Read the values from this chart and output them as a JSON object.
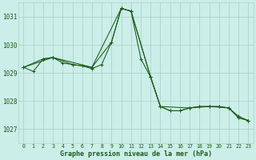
{
  "title": "Graphe pression niveau de la mer (hPa)",
  "bg_color": "#cceee8",
  "grid_color": "#aad4cc",
  "line_color": "#1a5c1a",
  "marker_color": "#1a5c1a",
  "xlim": [
    -0.5,
    23.5
  ],
  "ylim": [
    1026.5,
    1031.5
  ],
  "yticks": [
    1027,
    1028,
    1029,
    1030,
    1031
  ],
  "xticks": [
    0,
    1,
    2,
    3,
    4,
    5,
    6,
    7,
    8,
    9,
    10,
    11,
    12,
    13,
    14,
    15,
    16,
    17,
    18,
    19,
    20,
    21,
    22,
    23
  ],
  "series": [
    {
      "x": [
        0,
        1,
        2,
        3,
        4,
        5,
        6,
        7,
        8,
        9,
        10,
        11,
        12,
        13,
        14,
        15,
        16,
        17,
        18,
        19,
        20,
        21,
        22,
        23
      ],
      "y": [
        1029.2,
        1029.05,
        1029.5,
        1029.55,
        1029.35,
        1029.3,
        1029.25,
        1029.15,
        1029.3,
        1030.1,
        1031.3,
        1031.2,
        1029.5,
        1028.85,
        1027.8,
        1027.65,
        1027.65,
        1027.75,
        1027.8,
        1027.8,
        1027.8,
        1027.75,
        1027.4,
        1027.3
      ]
    },
    {
      "x": [
        0,
        2,
        3,
        5,
        7,
        9,
        10,
        11,
        13,
        14,
        15,
        16,
        17,
        18,
        19,
        20,
        21,
        22,
        23
      ],
      "y": [
        1029.2,
        1029.5,
        1029.55,
        1029.3,
        1029.2,
        1030.1,
        1031.3,
        1031.2,
        1028.85,
        1027.8,
        1027.65,
        1027.65,
        1027.75,
        1027.8,
        1027.8,
        1027.8,
        1027.75,
        1027.45,
        1027.3
      ]
    },
    {
      "x": [
        0,
        3,
        7,
        10,
        11,
        13,
        14,
        17,
        19,
        21,
        22,
        23
      ],
      "y": [
        1029.2,
        1029.55,
        1029.2,
        1031.3,
        1031.2,
        1028.85,
        1027.8,
        1027.75,
        1027.8,
        1027.75,
        1027.4,
        1027.3
      ]
    }
  ]
}
